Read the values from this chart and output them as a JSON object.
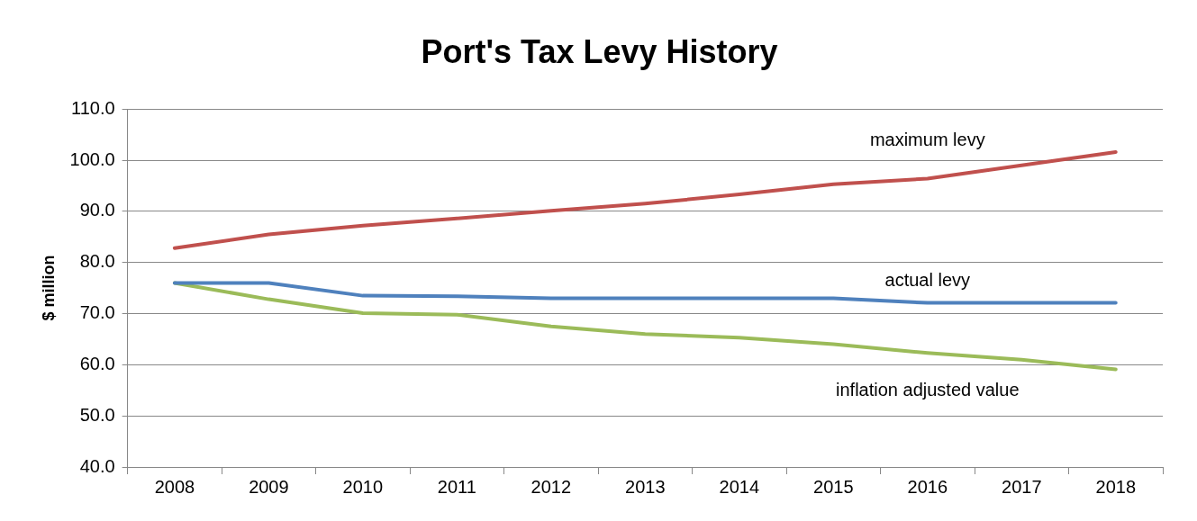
{
  "chart_data": {
    "type": "line",
    "title": "Port's Tax Levy History",
    "ylabel": "$ million",
    "categories": [
      "2008",
      "2009",
      "2010",
      "2011",
      "2012",
      "2013",
      "2014",
      "2015",
      "2016",
      "2017",
      "2018"
    ],
    "series": [
      {
        "name": "maximum levy",
        "color": "#c0504d",
        "values": [
          82.8,
          85.5,
          87.2,
          88.6,
          90.1,
          91.5,
          93.3,
          95.3,
          96.4,
          99.0,
          101.6
        ]
      },
      {
        "name": "actual levy",
        "color": "#4f81bd",
        "values": [
          76.0,
          76.0,
          73.5,
          73.4,
          73.0,
          73.0,
          73.0,
          73.0,
          72.1,
          72.1,
          72.1
        ]
      },
      {
        "name": "inflation adjusted value",
        "color": "#9bbb59",
        "values": [
          76.0,
          72.8,
          70.1,
          69.8,
          67.5,
          66.0,
          65.3,
          64.0,
          62.3,
          61.0,
          59.1
        ]
      }
    ],
    "ylim": [
      40,
      110
    ],
    "yticks": [
      {
        "value": 40,
        "label": "40.0"
      },
      {
        "value": 50,
        "label": "50.0"
      },
      {
        "value": 60,
        "label": "60.0"
      },
      {
        "value": 70,
        "label": "70.0"
      },
      {
        "value": 80,
        "label": "80.0"
      },
      {
        "value": 90,
        "label": "90.0"
      },
      {
        "value": 100,
        "label": "100.0"
      },
      {
        "value": 110,
        "label": "110.0"
      }
    ],
    "grid": "y",
    "legend": false,
    "marker": "none",
    "line_style": "solid"
  }
}
